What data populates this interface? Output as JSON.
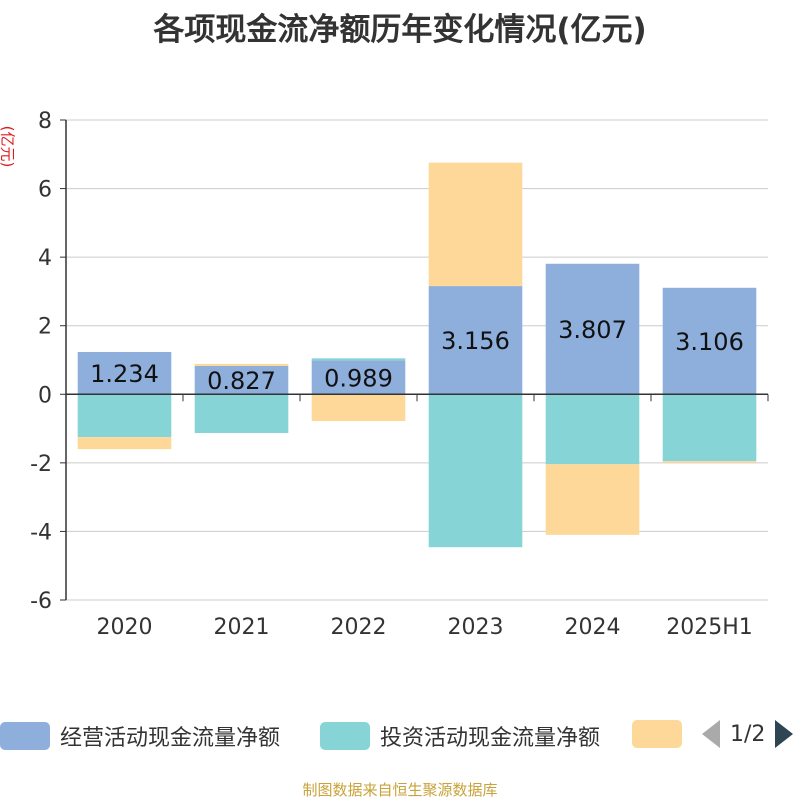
{
  "title": "各项现金流净额历年变化情况(亿元)",
  "unit_label": "(亿元)",
  "source": "制图数据来自恒生聚源数据库",
  "legend": {
    "items": [
      {
        "label": "经营活动现金流量净额",
        "color": "#8eaedb"
      },
      {
        "label": "投资活动现金流量净额",
        "color": "#86d4d6"
      },
      {
        "label": "",
        "color": "#fdd899"
      }
    ],
    "page_text": "1/2"
  },
  "chart_data": {
    "type": "bar",
    "stacked": true,
    "title": "各项现金流净额历年变化情况(亿元)",
    "ylabel": "(亿元)",
    "categories": [
      "2020",
      "2021",
      "2022",
      "2023",
      "2024",
      "2025H1"
    ],
    "ylim": [
      -6,
      8
    ],
    "yticks": [
      8,
      6,
      4,
      2,
      0,
      -2,
      -4,
      -6
    ],
    "series": [
      {
        "name": "经营活动现金流量净额",
        "color": "#8eaedb",
        "values": [
          1.234,
          0.827,
          0.989,
          3.156,
          3.807,
          3.106
        ],
        "show_labels": true
      },
      {
        "name": "投资活动现金流量净额",
        "color": "#86d4d6",
        "values": [
          -1.25,
          -1.13,
          0.06,
          -4.46,
          -2.04,
          -1.95
        ],
        "show_labels": false
      },
      {
        "name": "",
        "color": "#fdd899",
        "values": [
          -0.35,
          0.06,
          -0.78,
          3.6,
          -2.06,
          -0.05
        ],
        "show_labels": false
      }
    ],
    "grid": true
  }
}
